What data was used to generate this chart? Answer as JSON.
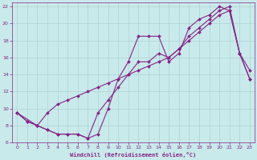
{
  "xlabel": "Windchill (Refroidissement éolien,°C)",
  "xlim": [
    -0.5,
    23.5
  ],
  "ylim": [
    6,
    22.5
  ],
  "xticks": [
    0,
    1,
    2,
    3,
    4,
    5,
    6,
    7,
    8,
    9,
    10,
    11,
    12,
    13,
    14,
    15,
    16,
    17,
    18,
    19,
    20,
    21,
    22,
    23
  ],
  "yticks": [
    6,
    8,
    10,
    12,
    14,
    16,
    18,
    20,
    22
  ],
  "line_color": "#882288",
  "bg_color": "#c8eaea",
  "grid_color": "#a8cccc",
  "line1_x": [
    0,
    1,
    2,
    3,
    4,
    5,
    6,
    7,
    8,
    9,
    10,
    11,
    12,
    13,
    14,
    15,
    16,
    17,
    18,
    19,
    20,
    21,
    22,
    23
  ],
  "line1_y": [
    9.5,
    8.5,
    8.0,
    7.5,
    7.0,
    7.0,
    7.0,
    6.5,
    7.0,
    10.0,
    13.5,
    15.5,
    18.5,
    18.5,
    18.5,
    15.5,
    16.5,
    19.5,
    20.5,
    21.0,
    22.0,
    21.5,
    16.5,
    14.5
  ],
  "line2_x": [
    0,
    1,
    2,
    3,
    4,
    5,
    6,
    7,
    8,
    9,
    10,
    11,
    12,
    13,
    14,
    15,
    16,
    17,
    18,
    19,
    20,
    21,
    22,
    23
  ],
  "line2_y": [
    9.5,
    8.5,
    8.0,
    9.5,
    10.5,
    11.0,
    11.5,
    12.0,
    12.5,
    13.0,
    13.5,
    14.0,
    14.5,
    15.0,
    15.5,
    16.0,
    17.0,
    18.0,
    19.0,
    20.0,
    21.0,
    21.5,
    16.5,
    13.5
  ],
  "line3_x": [
    0,
    2,
    3,
    4,
    5,
    6,
    7,
    8,
    9,
    10,
    11,
    12,
    13,
    14,
    15,
    16,
    17,
    18,
    19,
    20,
    21,
    22,
    23
  ],
  "line3_y": [
    9.5,
    8.0,
    7.5,
    7.0,
    7.0,
    7.0,
    6.5,
    9.5,
    11.0,
    12.5,
    14.0,
    15.5,
    15.5,
    16.5,
    16.0,
    17.0,
    18.5,
    19.5,
    20.5,
    21.5,
    22.0,
    16.5,
    13.5
  ],
  "marker": "D",
  "markersize": 2,
  "linewidth": 0.8
}
